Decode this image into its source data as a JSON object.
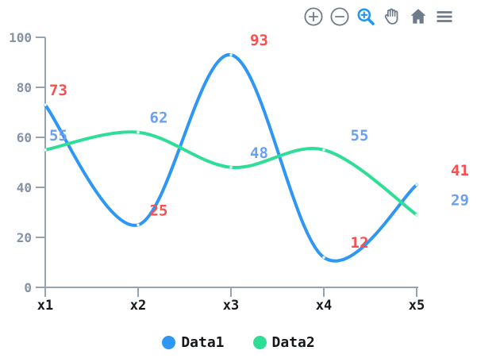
{
  "toolbar": {
    "tools": [
      {
        "icon": "zoom-in-icon",
        "active": false
      },
      {
        "icon": "zoom-out-icon",
        "active": false
      },
      {
        "icon": "zoom-select-icon",
        "active": true
      },
      {
        "icon": "pan-hand-icon",
        "active": false
      },
      {
        "icon": "home-reset-icon",
        "active": false
      },
      {
        "icon": "menu-icon",
        "active": false
      }
    ]
  },
  "colors": {
    "accent": "#2196f3",
    "icon": "#6e7b8a",
    "axis": "#96a3b3",
    "y_tick_label": "#8593a5",
    "x_tick_label": "#15191e",
    "legend_text": "#14181d",
    "point_dot": "#ffffff"
  },
  "chart_data": {
    "type": "line",
    "title": "",
    "xlabel": "",
    "ylabel": "",
    "categories": [
      "x1",
      "x2",
      "x3",
      "x4",
      "x5"
    ],
    "series": [
      {
        "name": "Data1",
        "values": [
          73,
          25,
          93,
          12,
          41
        ],
        "color": "#2e97f3",
        "label_color": "#f94f4f"
      },
      {
        "name": "Data2",
        "values": [
          55,
          62,
          48,
          55,
          29
        ],
        "color": "#2edd96",
        "label_color": "#6b9ff1"
      }
    ],
    "ylim": [
      0,
      100
    ],
    "yticks": [
      0,
      20,
      40,
      60,
      80,
      100
    ],
    "grid": false,
    "smooth": true,
    "point_labels": true,
    "legend_position": "bottom"
  }
}
